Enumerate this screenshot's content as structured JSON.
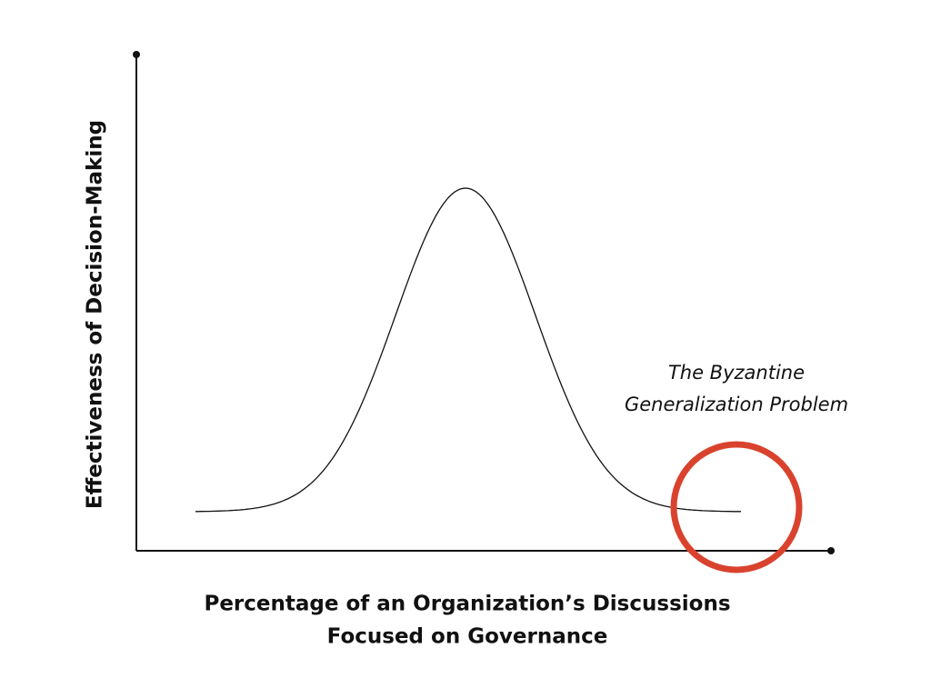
{
  "y_axis_label": "Effectiveness of Decision-Making",
  "x_axis_label": [
    "Percentage of an Organization’s Discussions",
    "Focused on Governance"
  ],
  "annotation": [
    "The Byzantine",
    "Generalization Problem"
  ]
}
